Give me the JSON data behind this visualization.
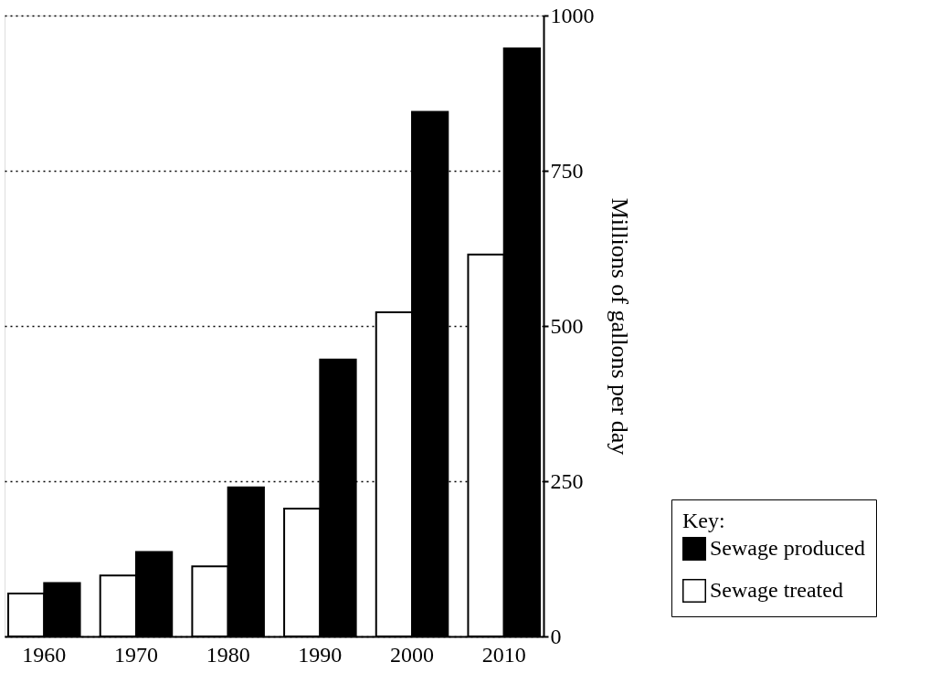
{
  "chart_data": {
    "type": "bar",
    "categories": [
      "1960",
      "1970",
      "1980",
      "1990",
      "2000",
      "2010"
    ],
    "series": [
      {
        "name": "Sewage treated",
        "color": "#ffffff",
        "values": [
          69,
          98,
          113,
          206,
          522,
          615
        ]
      },
      {
        "name": "Sewage produced",
        "color": "#000000",
        "values": [
          86,
          136,
          240,
          446,
          845,
          947
        ]
      }
    ],
    "ylabel": "Millions of gallons per day",
    "legend_title": "Key:",
    "ylim": [
      0,
      1000
    ],
    "yticks": [
      0,
      250,
      500,
      750,
      1000
    ],
    "grid": "y",
    "line_style": "dotted",
    "legend": "bottom right"
  }
}
